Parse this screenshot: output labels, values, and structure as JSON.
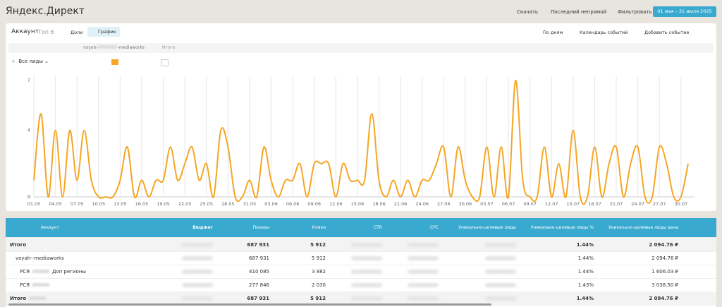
{
  "header": {
    "title": "Яндекс.Директ",
    "actions": [
      "Скачать",
      "Последний непрямой",
      "Фильтровать"
    ],
    "period": "01 мая – 31 июля 2025"
  },
  "toolbar": {
    "account": "Аккаунт",
    "top": "Топ 6",
    "views": [
      "Доли",
      "График"
    ],
    "actions": [
      "По дням",
      "Календарь событий",
      "Добавить событие"
    ]
  },
  "tabs": {
    "account_prefix": "voyah-",
    "account_suffix": "-mediaworks",
    "total": "Итого"
  },
  "filter": "Все лиды",
  "chart_data": {
    "type": "line",
    "categories": [
      "01.05",
      null,
      null,
      "04.05",
      null,
      null,
      "07.05",
      null,
      null,
      "10.05",
      null,
      null,
      "13.05",
      null,
      null,
      "16.05",
      null,
      null,
      "19.05",
      null,
      null,
      "22.05",
      null,
      null,
      "25.05",
      null,
      null,
      "28.05",
      null,
      null,
      "31.05",
      null,
      null,
      "03.06",
      null,
      null,
      "06.06",
      null,
      null,
      "09.06",
      null,
      null,
      "12.06",
      null,
      null,
      "15.06",
      null,
      null,
      "18.06",
      null,
      null,
      "21.06",
      null,
      null,
      "24.06",
      null,
      null,
      "27.06",
      null,
      null,
      "30.06",
      null,
      null,
      "03.07",
      null,
      null,
      "06.07",
      null,
      null,
      "09.07",
      null,
      null,
      "12.07",
      null,
      null,
      "15.07",
      null,
      null,
      "18.07",
      null,
      null,
      "21.07",
      null,
      null,
      "24.07",
      null,
      null,
      "27.07",
      null,
      null,
      "30.07",
      null
    ],
    "series": [
      {
        "color": "#f5a623",
        "values": [
          1,
          5,
          0,
          4,
          0,
          4,
          1,
          4,
          1,
          0,
          0,
          0,
          1,
          3,
          0,
          1,
          0,
          1,
          1,
          3,
          1,
          2,
          3,
          1,
          2,
          0,
          4,
          3,
          0,
          0,
          1,
          0,
          3,
          1,
          0,
          1,
          1,
          2,
          0,
          2,
          2,
          2,
          0,
          2,
          1,
          1,
          1,
          5,
          1,
          0,
          1,
          0,
          1,
          0,
          1,
          1,
          2,
          3,
          0,
          3,
          1,
          0,
          0,
          3,
          0,
          3,
          0,
          7,
          1,
          0,
          0,
          3,
          0,
          2,
          0,
          4,
          0,
          0,
          3,
          0,
          2,
          3,
          0,
          2,
          3,
          0,
          0,
          3,
          2,
          0,
          0,
          2
        ]
      }
    ],
    "ylim": [
      0,
      7
    ],
    "yticks": [
      0,
      4,
      7
    ],
    "grid": false
  },
  "table": {
    "columns": [
      "Аккаунт",
      "Бюджет",
      "Показы",
      "Клики",
      "CTR",
      "CPC",
      "Уникально-целевые лиды",
      "Уникально-целевые лиды %",
      "Уникально-целевые лиды цена",
      "Уникально-целевые лиды"
    ],
    "rows": [
      {
        "label": "Итого",
        "cells": [
          null,
          "687 931",
          "5 912",
          null,
          null,
          null,
          "1.44%",
          "2 094.76 ₽"
        ]
      },
      {
        "label": "voyah-",
        "label_end": "-mediaworks",
        "cells": [
          null,
          "687 931",
          "5 912",
          null,
          null,
          null,
          "1.44%",
          "2 094.76 ₽"
        ]
      },
      {
        "label": "РСЯ",
        "label_end": "Доп регионы",
        "cells": [
          null,
          "410 085",
          "3 882",
          null,
          null,
          null,
          "1.44%",
          "1 606.03 ₽"
        ]
      },
      {
        "label": "РСЯ",
        "cells": [
          null,
          "277 846",
          "2 030",
          null,
          null,
          null,
          "1.43%",
          "3 038.50 ₽"
        ]
      },
      {
        "label": "Итого",
        "cells": [
          null,
          "687 931",
          "5 912",
          null,
          null,
          null,
          "1.44%",
          "2 094.76 ₽"
        ]
      }
    ]
  }
}
